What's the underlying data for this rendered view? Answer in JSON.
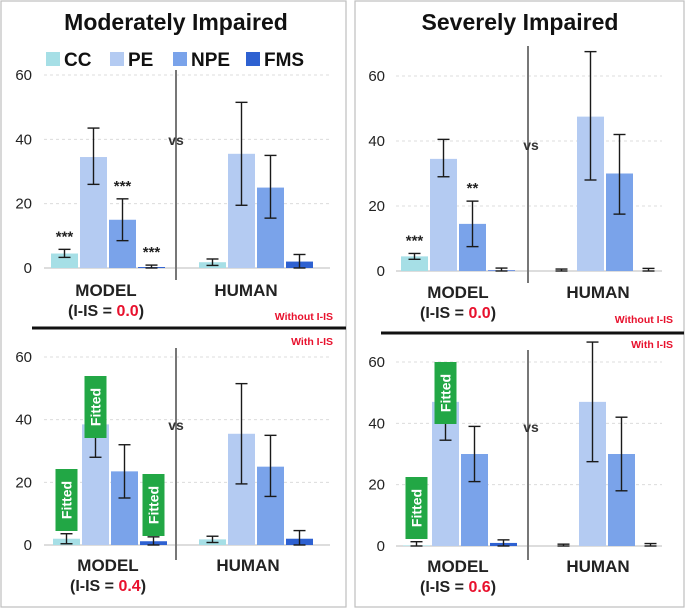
{
  "panel_titles": [
    "Moderately Impaired",
    "Severely Impaired"
  ],
  "legend": [
    {
      "label": "CC",
      "color": "#a6dfe6"
    },
    {
      "label": "PE",
      "color": "#b4cbf2"
    },
    {
      "label": "NPE",
      "color": "#7aa3ea"
    },
    {
      "label": "FMS",
      "color": "#2e61d1"
    }
  ],
  "labels": {
    "vs": "vs",
    "model": "MODEL",
    "human": "HUMAN",
    "iis_prefix": "(I-IS = ",
    "iis_suffix": ")",
    "without": "Without I-IS",
    "with": "With I-IS",
    "fitted": "Fitted"
  },
  "chart_data": [
    {
      "type": "bar",
      "title": "Moderately Impaired",
      "section": "Without I-IS",
      "groups": [
        "MODEL",
        "HUMAN"
      ],
      "iis_value": "0.0",
      "yticks": [
        "0",
        "20",
        "40",
        "60"
      ],
      "ylim": [
        0,
        60
      ],
      "series": [
        {
          "name": "CC",
          "values": [
            4.5,
            1.8
          ],
          "err_low": [
            3.3,
            0.8
          ],
          "err_high": [
            5.8,
            2.8
          ]
        },
        {
          "name": "PE",
          "values": [
            34.5,
            35.5
          ],
          "err_low": [
            26,
            19.5
          ],
          "err_high": [
            43.5,
            51.5
          ]
        },
        {
          "name": "NPE",
          "values": [
            15,
            25
          ],
          "err_low": [
            8.5,
            15.5
          ],
          "err_high": [
            21.5,
            35
          ]
        },
        {
          "name": "FMS",
          "values": [
            0.3,
            2
          ],
          "err_low": [
            0,
            0
          ],
          "err_high": [
            0.9,
            4.2
          ]
        }
      ],
      "annotations": [
        "***",
        "",
        "***",
        "***"
      ]
    },
    {
      "type": "bar",
      "title": "Moderately Impaired",
      "section": "With I-IS",
      "groups": [
        "MODEL",
        "HUMAN"
      ],
      "iis_value": "0.4",
      "yticks": [
        "0",
        "20",
        "40",
        "60"
      ],
      "ylim": [
        0,
        60
      ],
      "series": [
        {
          "name": "CC",
          "values": [
            2,
            1.8
          ],
          "err_low": [
            0.4,
            0.8
          ],
          "err_high": [
            3.6,
            2.8
          ]
        },
        {
          "name": "PE",
          "values": [
            38.5,
            35.5
          ],
          "err_low": [
            28,
            19.5
          ],
          "err_high": [
            49,
            51.5
          ]
        },
        {
          "name": "NPE",
          "values": [
            23.5,
            25
          ],
          "err_low": [
            15,
            15.5
          ],
          "err_high": [
            32,
            35
          ]
        },
        {
          "name": "FMS",
          "values": [
            1.2,
            2
          ],
          "err_low": [
            0,
            0
          ],
          "err_high": [
            2.6,
            4.6
          ]
        }
      ],
      "annotations": [
        "Fitted",
        "Fitted",
        "",
        "Fitted"
      ]
    },
    {
      "type": "bar",
      "title": "Severely Impaired",
      "section": "Without I-IS",
      "groups": [
        "MODEL",
        "HUMAN"
      ],
      "iis_value": "0.0",
      "yticks": [
        "0",
        "20",
        "40",
        "60"
      ],
      "ylim": [
        0,
        60
      ],
      "series": [
        {
          "name": "CC",
          "values": [
            4.5,
            0
          ],
          "err_low": [
            3.6,
            0
          ],
          "err_high": [
            5.4,
            0.6
          ]
        },
        {
          "name": "PE",
          "values": [
            34.5,
            47.5
          ],
          "err_low": [
            29,
            28
          ],
          "err_high": [
            40.5,
            67.5
          ]
        },
        {
          "name": "NPE",
          "values": [
            14.5,
            30
          ],
          "err_low": [
            7.5,
            17.5
          ],
          "err_high": [
            21.5,
            42
          ]
        },
        {
          "name": "FMS",
          "values": [
            0.2,
            0
          ],
          "err_low": [
            0,
            0
          ],
          "err_high": [
            0.9,
            0.8
          ]
        }
      ],
      "annotations": [
        "***",
        "",
        "**",
        ""
      ]
    },
    {
      "type": "bar",
      "title": "Severely Impaired",
      "section": "With I-IS",
      "groups": [
        "MODEL",
        "HUMAN"
      ],
      "iis_value": "0.6",
      "yticks": [
        "0",
        "20",
        "40",
        "60"
      ],
      "ylim": [
        0,
        60
      ],
      "series": [
        {
          "name": "CC",
          "values": [
            0.2,
            0
          ],
          "err_low": [
            0,
            0
          ],
          "err_high": [
            1.4,
            0.6
          ]
        },
        {
          "name": "PE",
          "values": [
            47,
            47
          ],
          "err_low": [
            34.5,
            27.5
          ],
          "err_high": [
            59.5,
            66.5
          ]
        },
        {
          "name": "NPE",
          "values": [
            30,
            30
          ],
          "err_low": [
            21,
            18
          ],
          "err_high": [
            39,
            42
          ]
        },
        {
          "name": "FMS",
          "values": [
            1,
            0
          ],
          "err_low": [
            0,
            0
          ],
          "err_high": [
            2,
            0.8
          ]
        }
      ],
      "annotations": [
        "Fitted",
        "Fitted",
        "",
        ""
      ]
    }
  ]
}
